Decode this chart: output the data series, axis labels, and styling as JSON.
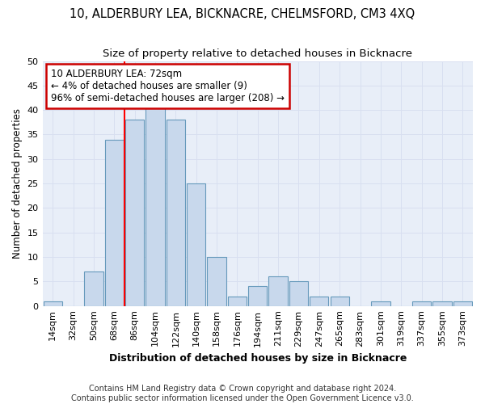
{
  "title": "10, ALDERBURY LEA, BICKNACRE, CHELMSFORD, CM3 4XQ",
  "subtitle": "Size of property relative to detached houses in Bicknacre",
  "xlabel": "Distribution of detached houses by size in Bicknacre",
  "ylabel": "Number of detached properties",
  "categories": [
    "14sqm",
    "32sqm",
    "50sqm",
    "68sqm",
    "86sqm",
    "104sqm",
    "122sqm",
    "140sqm",
    "158sqm",
    "176sqm",
    "194sqm",
    "211sqm",
    "229sqm",
    "247sqm",
    "265sqm",
    "283sqm",
    "301sqm",
    "319sqm",
    "337sqm",
    "355sqm",
    "373sqm"
  ],
  "values": [
    1,
    0,
    7,
    34,
    38,
    41,
    38,
    25,
    10,
    2,
    4,
    6,
    5,
    2,
    2,
    0,
    1,
    0,
    1,
    1,
    1
  ],
  "bar_color": "#c8d8ec",
  "bar_edge_color": "#6699bb",
  "red_line_x": 3.5,
  "annotation_line1": "10 ALDERBURY LEA: 72sqm",
  "annotation_line2": "← 4% of detached houses are smaller (9)",
  "annotation_line3": "96% of semi-detached houses are larger (208) →",
  "annotation_box_color": "#ffffff",
  "annotation_box_edge": "#cc0000",
  "ylim": [
    0,
    50
  ],
  "yticks": [
    0,
    5,
    10,
    15,
    20,
    25,
    30,
    35,
    40,
    45,
    50
  ],
  "grid_color": "#d8dff0",
  "bg_color": "#e8eef8",
  "footer_line1": "Contains HM Land Registry data © Crown copyright and database right 2024.",
  "footer_line2": "Contains public sector information licensed under the Open Government Licence v3.0.",
  "title_fontsize": 10.5,
  "subtitle_fontsize": 9.5,
  "xlabel_fontsize": 9,
  "ylabel_fontsize": 8.5,
  "tick_fontsize": 8,
  "annotation_fontsize": 8.5,
  "footer_fontsize": 7
}
